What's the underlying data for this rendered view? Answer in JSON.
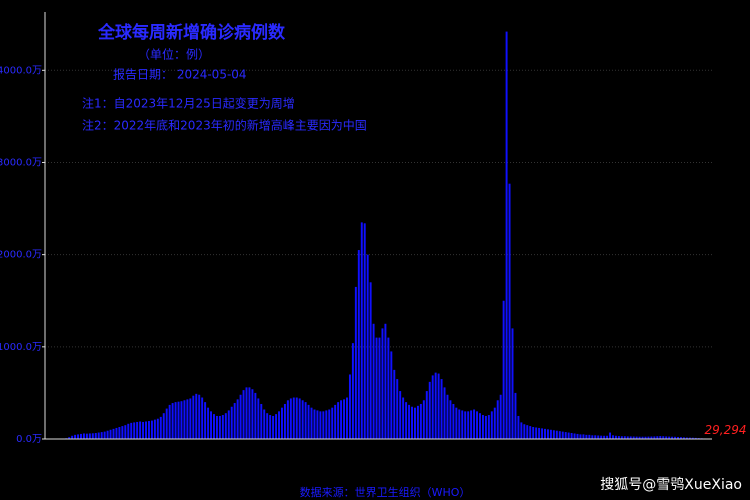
{
  "chart_data": {
    "type": "bar",
    "title": "全球每周新增确诊病例数",
    "subtitle": "（单位：例）",
    "report_date": "报告日期： 2024-05-04",
    "notes": [
      "注1：自2023年12月25日起变更为周增",
      "注2：2022年底和2023年初的新增高峰主要因为中国"
    ],
    "xlabel": "数据来源：世界卫生组织（WHO）",
    "watermark": "搜狐号@雪鸮XueXiao",
    "color": "#1010ff",
    "label_color": "#ff2020",
    "grid": true,
    "ylim": [
      0,
      4600
    ],
    "yticks": [
      {
        "value": 0,
        "label": "0.0万"
      },
      {
        "value": 1000,
        "label": "1000.0万"
      },
      {
        "value": 2000,
        "label": "2000.0万"
      },
      {
        "value": 3000,
        "label": "3000.0万"
      },
      {
        "value": 4000,
        "label": "4000.0万"
      }
    ],
    "values": [
      0.1,
      0.3,
      0.5,
      0.8,
      1,
      3,
      8,
      20,
      35,
      45,
      50,
      55,
      60,
      58,
      60,
      62,
      65,
      70,
      75,
      80,
      90,
      100,
      110,
      120,
      130,
      140,
      150,
      165,
      175,
      180,
      185,
      190,
      185,
      190,
      195,
      200,
      210,
      220,
      240,
      280,
      330,
      370,
      390,
      400,
      405,
      410,
      420,
      430,
      440,
      470,
      490,
      480,
      450,
      400,
      340,
      300,
      270,
      250,
      250,
      260,
      280,
      310,
      350,
      390,
      430,
      480,
      530,
      560,
      560,
      540,
      500,
      440,
      380,
      320,
      280,
      260,
      250,
      270,
      300,
      340,
      380,
      420,
      440,
      450,
      450,
      440,
      420,
      400,
      370,
      340,
      320,
      310,
      300,
      300,
      310,
      320,
      340,
      370,
      400,
      420,
      430,
      450,
      700,
      1040,
      1650,
      2050,
      2350,
      2340,
      2000,
      1700,
      1250,
      1100,
      1100,
      1200,
      1250,
      1100,
      950,
      750,
      650,
      520,
      450,
      400,
      370,
      350,
      340,
      360,
      380,
      420,
      520,
      620,
      690,
      720,
      710,
      650,
      560,
      480,
      420,
      380,
      340,
      320,
      310,
      300,
      300,
      310,
      320,
      300,
      280,
      260,
      250,
      260,
      300,
      340,
      420,
      480,
      1500,
      4420,
      2770,
      1200,
      500,
      250,
      180,
      160,
      150,
      140,
      130,
      125,
      120,
      115,
      110,
      105,
      100,
      95,
      90,
      85,
      80,
      75,
      70,
      65,
      60,
      55,
      50,
      50,
      45,
      45,
      40,
      40,
      38,
      36,
      35,
      35,
      70,
      40,
      35,
      32,
      30,
      30,
      28,
      28,
      27,
      26,
      25,
      25,
      25,
      26,
      27,
      28,
      30,
      32,
      30,
      28,
      26,
      25,
      24,
      22,
      20,
      18,
      16,
      15,
      14,
      12,
      10,
      8,
      6,
      5,
      2.9294
    ],
    "value_labels": [
      null,
      null,
      null,
      null,
      null,
      null,
      null,
      null,
      null,
      null,
      null,
      null,
      null,
      null,
      null,
      null,
      null,
      null,
      null,
      null,
      null,
      null,
      null,
      null,
      null,
      null,
      null,
      null,
      null,
      null,
      null,
      null,
      null,
      null,
      null,
      null,
      null,
      null,
      null,
      null,
      null,
      null,
      null,
      null,
      null,
      null,
      null,
      null,
      null,
      null,
      null,
      null,
      null,
      null,
      null,
      null,
      null,
      null,
      null,
      null,
      null,
      null,
      null,
      null,
      null,
      null,
      null,
      null,
      null,
      null,
      null,
      null,
      null,
      null,
      null,
      null,
      null,
      null,
      null,
      null,
      null,
      null,
      null,
      null,
      null,
      null,
      null,
      null,
      null,
      null,
      null,
      null,
      null,
      null,
      null,
      null,
      null,
      null,
      null,
      null,
      null,
      null,
      null,
      null,
      null,
      null,
      null,
      null,
      null,
      null,
      null,
      null,
      null,
      null,
      null,
      null,
      null,
      null,
      null,
      null,
      null,
      null,
      null,
      null,
      null,
      null,
      null,
      null,
      null,
      null,
      null,
      null,
      null,
      null,
      null,
      null,
      null,
      null,
      null,
      null,
      null,
      null,
      null,
      null,
      null,
      null,
      null,
      null,
      null,
      null,
      null,
      null,
      null,
      null,
      null,
      null,
      null,
      null,
      null,
      null,
      null,
      null,
      null,
      null,
      null,
      null,
      null,
      null,
      null,
      null,
      null,
      null,
      null,
      null,
      null,
      null,
      null,
      null,
      null,
      null,
      null,
      null,
      null,
      null,
      null,
      null,
      null,
      null,
      null,
      null,
      null,
      null,
      null,
      null,
      null,
      null,
      null,
      null,
      null,
      null,
      null,
      null,
      null,
      null,
      null,
      null,
      null,
      null,
      null,
      null,
      null,
      null,
      null,
      null,
      null,
      null,
      null,
      null,
      null,
      null,
      null,
      null,
      null,
      null,
      "29,294"
    ]
  }
}
